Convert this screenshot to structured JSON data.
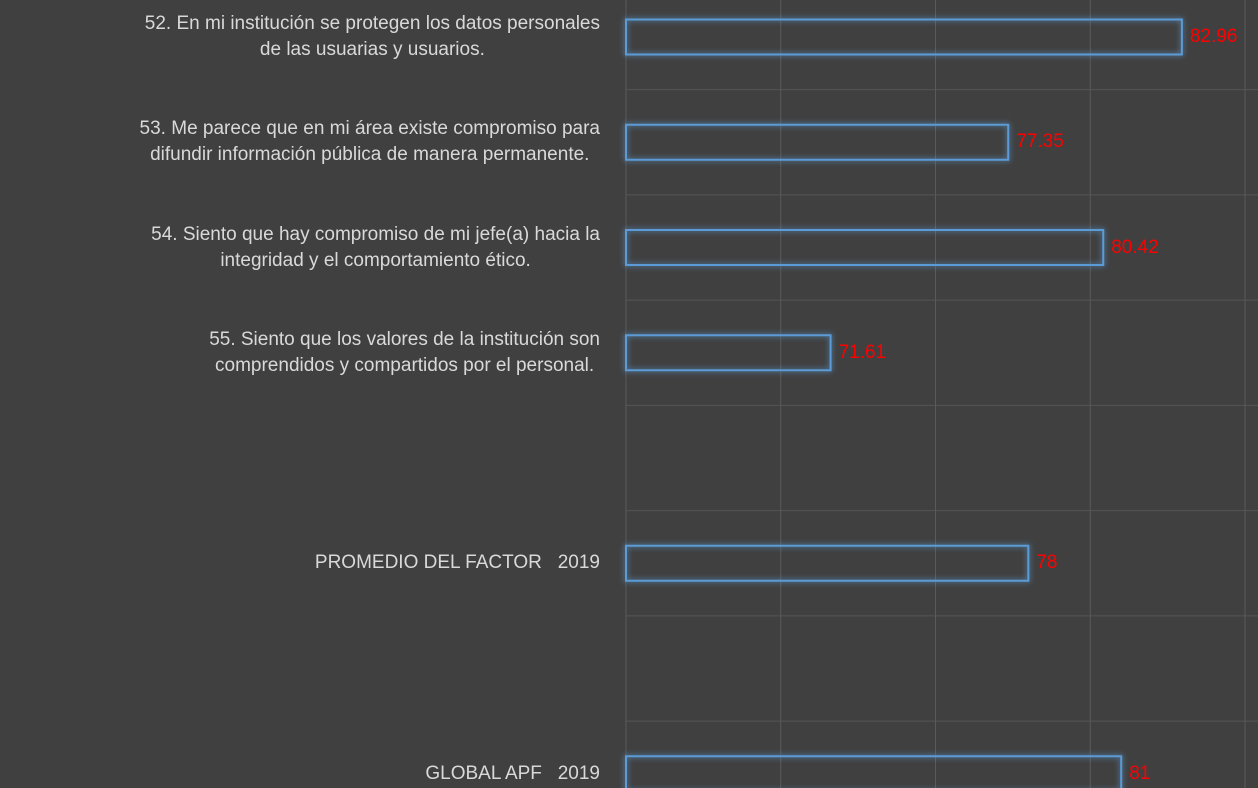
{
  "chart_data": {
    "type": "bar",
    "orientation": "horizontal",
    "categories": [
      "52. En mi institución se protegen los datos personales\nde las usuarias y usuarios.",
      "53. Me parece que en mi área existe compromiso para\ndifundir información pública de manera permanente.",
      "54. Siento que hay compromiso de mi jefe(a) hacia la\nintegridad y el comportamiento ético.",
      "55. Siento que los valores de la institución son\ncomprendidos y compartidos por el personal.",
      null,
      "PROMEDIO DEL FACTOR   2019",
      null,
      "GLOBAL APF   2019"
    ],
    "values": [
      82.96,
      77.35,
      80.42,
      71.61,
      null,
      78,
      null,
      81
    ],
    "color": "#5b9bd5",
    "label_color": "#ff0000",
    "xlim": [
      65,
      85
    ],
    "xticks": [
      65,
      70,
      75,
      80,
      85
    ],
    "grid": true
  }
}
